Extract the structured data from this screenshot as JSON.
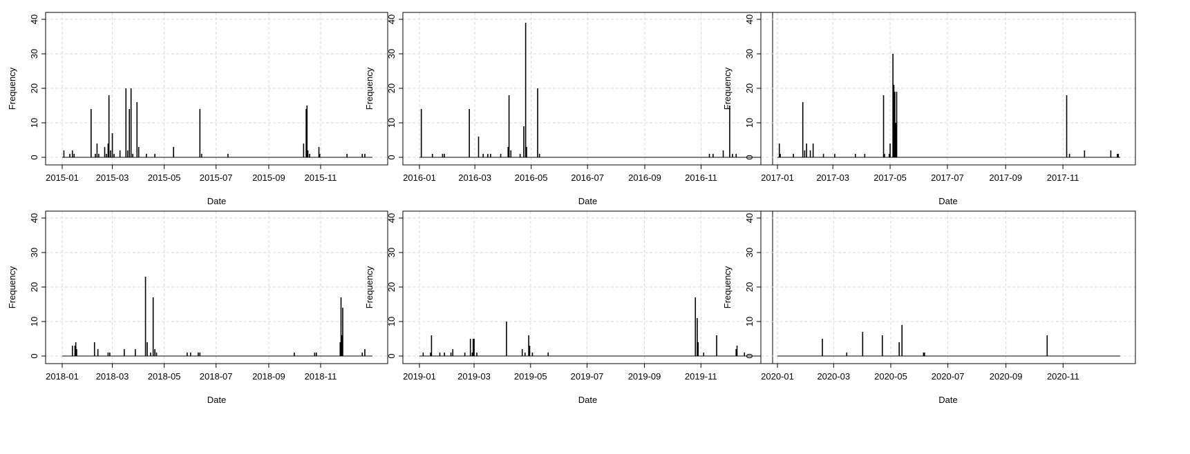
{
  "ylabel": "Frequency",
  "xlabel": "Date",
  "chart_data": [
    {
      "type": "bar",
      "year": 2015,
      "xlabel": "Date",
      "ylabel": "Frequency",
      "ylim": [
        0,
        40
      ],
      "yticks": [
        0,
        10,
        20,
        30,
        40
      ],
      "xticks": [
        "2015-01",
        "2015-03",
        "2015-05",
        "2015-07",
        "2015-09",
        "2015-11"
      ],
      "grid": true,
      "bars": [
        {
          "date": "2015-01-03",
          "value": 2
        },
        {
          "date": "2015-01-10",
          "value": 1
        },
        {
          "date": "2015-01-13",
          "value": 2
        },
        {
          "date": "2015-01-15",
          "value": 1
        },
        {
          "date": "2015-02-04",
          "value": 14
        },
        {
          "date": "2015-02-09",
          "value": 1
        },
        {
          "date": "2015-02-11",
          "value": 4
        },
        {
          "date": "2015-02-13",
          "value": 1
        },
        {
          "date": "2015-02-20",
          "value": 3
        },
        {
          "date": "2015-02-22",
          "value": 1
        },
        {
          "date": "2015-02-24",
          "value": 4
        },
        {
          "date": "2015-02-25",
          "value": 18
        },
        {
          "date": "2015-02-27",
          "value": 2
        },
        {
          "date": "2015-03-01",
          "value": 7
        },
        {
          "date": "2015-03-03",
          "value": 1
        },
        {
          "date": "2015-03-10",
          "value": 2
        },
        {
          "date": "2015-03-17",
          "value": 20
        },
        {
          "date": "2015-03-19",
          "value": 2
        },
        {
          "date": "2015-03-21",
          "value": 14
        },
        {
          "date": "2015-03-23",
          "value": 20
        },
        {
          "date": "2015-03-25",
          "value": 1
        },
        {
          "date": "2015-03-30",
          "value": 16
        },
        {
          "date": "2015-04-01",
          "value": 3
        },
        {
          "date": "2015-04-10",
          "value": 1
        },
        {
          "date": "2015-04-20",
          "value": 1
        },
        {
          "date": "2015-05-12",
          "value": 3
        },
        {
          "date": "2015-06-12",
          "value": 14
        },
        {
          "date": "2015-06-14",
          "value": 1
        },
        {
          "date": "2015-07-15",
          "value": 1
        },
        {
          "date": "2015-10-12",
          "value": 4
        },
        {
          "date": "2015-10-15",
          "value": 14
        },
        {
          "date": "2015-10-16",
          "value": 15
        },
        {
          "date": "2015-10-17",
          "value": 2
        },
        {
          "date": "2015-10-19",
          "value": 1
        },
        {
          "date": "2015-10-30",
          "value": 3
        },
        {
          "date": "2015-10-31",
          "value": 1
        },
        {
          "date": "2015-12-02",
          "value": 1
        },
        {
          "date": "2015-12-20",
          "value": 1
        },
        {
          "date": "2015-12-23",
          "value": 1
        }
      ]
    },
    {
      "type": "bar",
      "year": 2016,
      "xlabel": "Date",
      "ylabel": "Frequency",
      "ylim": [
        0,
        40
      ],
      "yticks": [
        0,
        10,
        20,
        30,
        40
      ],
      "xticks": [
        "2016-01",
        "2016-03",
        "2016-05",
        "2016-07",
        "2016-09",
        "2016-11"
      ],
      "grid": true,
      "bars": [
        {
          "date": "2016-01-03",
          "value": 14
        },
        {
          "date": "2016-01-15",
          "value": 1
        },
        {
          "date": "2016-01-26",
          "value": 1
        },
        {
          "date": "2016-01-28",
          "value": 1
        },
        {
          "date": "2016-02-24",
          "value": 14
        },
        {
          "date": "2016-03-05",
          "value": 6
        },
        {
          "date": "2016-03-10",
          "value": 1
        },
        {
          "date": "2016-03-15",
          "value": 1
        },
        {
          "date": "2016-03-18",
          "value": 1
        },
        {
          "date": "2016-03-29",
          "value": 1
        },
        {
          "date": "2016-04-06",
          "value": 3
        },
        {
          "date": "2016-04-07",
          "value": 18
        },
        {
          "date": "2016-04-09",
          "value": 2
        },
        {
          "date": "2016-04-19",
          "value": 1
        },
        {
          "date": "2016-04-23",
          "value": 9
        },
        {
          "date": "2016-04-25",
          "value": 39
        },
        {
          "date": "2016-04-26",
          "value": 3
        },
        {
          "date": "2016-05-08",
          "value": 20
        },
        {
          "date": "2016-05-10",
          "value": 1
        },
        {
          "date": "2016-11-10",
          "value": 1
        },
        {
          "date": "2016-11-14",
          "value": 1
        },
        {
          "date": "2016-11-25",
          "value": 2
        },
        {
          "date": "2016-12-02",
          "value": 15
        },
        {
          "date": "2016-12-05",
          "value": 1
        },
        {
          "date": "2016-12-09",
          "value": 1
        }
      ]
    },
    {
      "type": "bar",
      "year": 2017,
      "xlabel": "Date",
      "ylabel": "Frequency",
      "ylim": [
        0,
        40
      ],
      "yticks": [
        0,
        10,
        20,
        30,
        40
      ],
      "xticks": [
        "2017-01",
        "2017-03",
        "2017-05",
        "2017-07",
        "2017-09",
        "2017-11"
      ],
      "grid": true,
      "bars": [
        {
          "date": "2017-01-03",
          "value": 4
        },
        {
          "date": "2017-01-04",
          "value": 1
        },
        {
          "date": "2017-01-18",
          "value": 1
        },
        {
          "date": "2017-01-28",
          "value": 16
        },
        {
          "date": "2017-01-30",
          "value": 2
        },
        {
          "date": "2017-02-01",
          "value": 4
        },
        {
          "date": "2017-02-05",
          "value": 2
        },
        {
          "date": "2017-02-08",
          "value": 4
        },
        {
          "date": "2017-02-19",
          "value": 1
        },
        {
          "date": "2017-03-03",
          "value": 1
        },
        {
          "date": "2017-03-25",
          "value": 1
        },
        {
          "date": "2017-04-04",
          "value": 1
        },
        {
          "date": "2017-04-24",
          "value": 18
        },
        {
          "date": "2017-04-25",
          "value": 1
        },
        {
          "date": "2017-04-30",
          "value": 1
        },
        {
          "date": "2017-05-01",
          "value": 4
        },
        {
          "date": "2017-05-04",
          "value": 30
        },
        {
          "date": "2017-05-05",
          "value": 21
        },
        {
          "date": "2017-05-06",
          "value": 19
        },
        {
          "date": "2017-05-07",
          "value": 10
        },
        {
          "date": "2017-05-08",
          "value": 19
        },
        {
          "date": "2017-11-05",
          "value": 18
        },
        {
          "date": "2017-11-08",
          "value": 1
        },
        {
          "date": "2017-11-24",
          "value": 2
        },
        {
          "date": "2017-12-22",
          "value": 2
        },
        {
          "date": "2017-12-29",
          "value": 1
        },
        {
          "date": "2017-12-30",
          "value": 1
        }
      ]
    },
    {
      "type": "bar",
      "year": 2018,
      "xlabel": "Date",
      "ylabel": "Frequency",
      "ylim": [
        0,
        40
      ],
      "yticks": [
        0,
        10,
        20,
        30,
        40
      ],
      "xticks": [
        "2018-01",
        "2018-03",
        "2018-05",
        "2018-07",
        "2018-09",
        "2018-11"
      ],
      "grid": true,
      "bars": [
        {
          "date": "2018-01-13",
          "value": 3
        },
        {
          "date": "2018-01-16",
          "value": 3
        },
        {
          "date": "2018-01-17",
          "value": 4
        },
        {
          "date": "2018-01-18",
          "value": 2
        },
        {
          "date": "2018-02-08",
          "value": 4
        },
        {
          "date": "2018-02-12",
          "value": 2
        },
        {
          "date": "2018-02-24",
          "value": 1
        },
        {
          "date": "2018-02-26",
          "value": 1
        },
        {
          "date": "2018-03-15",
          "value": 2
        },
        {
          "date": "2018-03-28",
          "value": 2
        },
        {
          "date": "2018-04-09",
          "value": 23
        },
        {
          "date": "2018-04-11",
          "value": 4
        },
        {
          "date": "2018-04-15",
          "value": 1
        },
        {
          "date": "2018-04-18",
          "value": 17
        },
        {
          "date": "2018-04-20",
          "value": 2
        },
        {
          "date": "2018-04-22",
          "value": 1
        },
        {
          "date": "2018-05-28",
          "value": 1
        },
        {
          "date": "2018-06-01",
          "value": 1
        },
        {
          "date": "2018-06-10",
          "value": 1
        },
        {
          "date": "2018-06-12",
          "value": 1
        },
        {
          "date": "2018-10-01",
          "value": 1
        },
        {
          "date": "2018-10-25",
          "value": 1
        },
        {
          "date": "2018-10-27",
          "value": 1
        },
        {
          "date": "2018-11-24",
          "value": 4
        },
        {
          "date": "2018-11-25",
          "value": 17
        },
        {
          "date": "2018-11-26",
          "value": 6
        },
        {
          "date": "2018-11-27",
          "value": 14
        },
        {
          "date": "2018-12-20",
          "value": 1
        },
        {
          "date": "2018-12-23",
          "value": 2
        }
      ]
    },
    {
      "type": "bar",
      "year": 2019,
      "xlabel": "Date",
      "ylabel": "Frequency",
      "ylim": [
        0,
        40
      ],
      "yticks": [
        0,
        10,
        20,
        30,
        40
      ],
      "xticks": [
        "2019-01",
        "2019-03",
        "2019-05",
        "2019-07",
        "2019-09",
        "2019-11"
      ],
      "grid": true,
      "bars": [
        {
          "date": "2019-01-05",
          "value": 1
        },
        {
          "date": "2019-01-13",
          "value": 1
        },
        {
          "date": "2019-01-14",
          "value": 6
        },
        {
          "date": "2019-01-23",
          "value": 1
        },
        {
          "date": "2019-01-28",
          "value": 1
        },
        {
          "date": "2019-02-04",
          "value": 1
        },
        {
          "date": "2019-02-06",
          "value": 2
        },
        {
          "date": "2019-02-19",
          "value": 1
        },
        {
          "date": "2019-02-25",
          "value": 5
        },
        {
          "date": "2019-02-27",
          "value": 1
        },
        {
          "date": "2019-02-28",
          "value": 5
        },
        {
          "date": "2019-03-01",
          "value": 5
        },
        {
          "date": "2019-03-04",
          "value": 1
        },
        {
          "date": "2019-04-05",
          "value": 10
        },
        {
          "date": "2019-04-22",
          "value": 2
        },
        {
          "date": "2019-04-25",
          "value": 1
        },
        {
          "date": "2019-04-29",
          "value": 6
        },
        {
          "date": "2019-04-30",
          "value": 3
        },
        {
          "date": "2019-05-03",
          "value": 1
        },
        {
          "date": "2019-05-20",
          "value": 1
        },
        {
          "date": "2019-10-26",
          "value": 17
        },
        {
          "date": "2019-10-28",
          "value": 11
        },
        {
          "date": "2019-10-29",
          "value": 4
        },
        {
          "date": "2019-11-04",
          "value": 1
        },
        {
          "date": "2019-11-18",
          "value": 6
        },
        {
          "date": "2019-12-09",
          "value": 2
        },
        {
          "date": "2019-12-10",
          "value": 3
        },
        {
          "date": "2019-12-18",
          "value": 1
        }
      ]
    },
    {
      "type": "bar",
      "year": 2020,
      "xlabel": "Date",
      "ylabel": "Frequency",
      "ylim": [
        0,
        40
      ],
      "yticks": [
        0,
        10,
        20,
        30,
        40
      ],
      "xticks": [
        "2020-01",
        "2020-03",
        "2020-05",
        "2020-07",
        "2020-09",
        "2020-11"
      ],
      "grid": true,
      "bars": [
        {
          "date": "2020-02-18",
          "value": 5
        },
        {
          "date": "2020-03-15",
          "value": 1
        },
        {
          "date": "2020-04-01",
          "value": 7
        },
        {
          "date": "2020-04-22",
          "value": 6
        },
        {
          "date": "2020-05-10",
          "value": 4
        },
        {
          "date": "2020-05-13",
          "value": 9
        },
        {
          "date": "2020-06-05",
          "value": 1
        },
        {
          "date": "2020-06-06",
          "value": 1
        },
        {
          "date": "2020-10-15",
          "value": 6
        }
      ]
    }
  ]
}
